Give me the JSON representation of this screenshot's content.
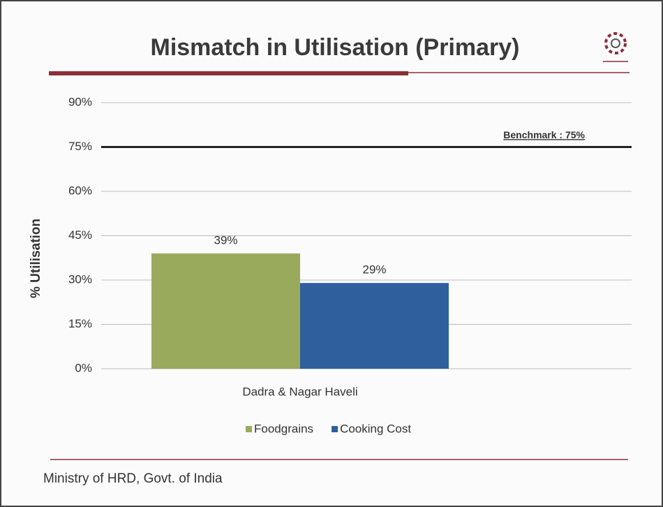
{
  "chart_data": {
    "type": "bar",
    "title": "Mismatch in Utilisation (Primary)",
    "y_label": "% Utilisation",
    "categories": [
      "Dadra & Nagar Haveli"
    ],
    "series": [
      {
        "name": "Foodgrains",
        "color": "#9aaa5c",
        "values": [
          39
        ],
        "value_labels": [
          "39%"
        ]
      },
      {
        "name": "Cooking Cost",
        "color": "#2f5f9c",
        "values": [
          29
        ],
        "value_labels": [
          "29%"
        ]
      }
    ],
    "ylim": [
      0,
      90
    ],
    "yticks": [
      {
        "value": 0,
        "label": "0%"
      },
      {
        "value": 15,
        "label": "15%"
      },
      {
        "value": 30,
        "label": "30%"
      },
      {
        "value": 45,
        "label": "45%"
      },
      {
        "value": 60,
        "label": "60%"
      },
      {
        "value": 75,
        "label": "75%"
      },
      {
        "value": 90,
        "label": "90%"
      }
    ],
    "grid": true,
    "legend": "bottom",
    "benchmark": {
      "value": 75,
      "label": "Benchmark : 75%"
    },
    "footer": "Ministry of HRD, Govt. of India"
  }
}
